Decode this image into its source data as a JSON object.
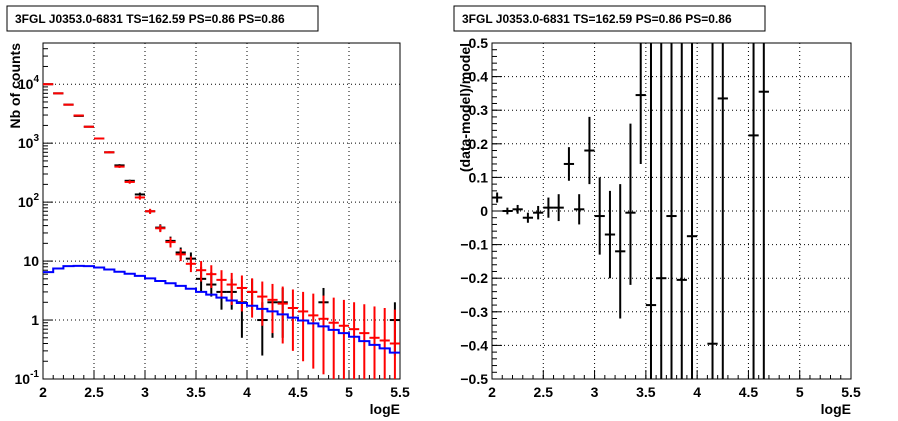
{
  "chart_data": [
    {
      "type": "scatter",
      "title": "3FGL J0353.0-6831 TS=162.59 PS=0.86 PS=0.86",
      "xlabel": "logE",
      "ylabel": "Nb of counts",
      "xlim": [
        2,
        5.5
      ],
      "ylim": [
        0.1,
        50000
      ],
      "yscale": "log",
      "grid": true,
      "x_ticks": [
        "2",
        "2.5",
        "3",
        "3.5",
        "4",
        "4.5",
        "5",
        "5.5"
      ],
      "y_ticks": [
        {
          "value": 0.1,
          "base": "10",
          "exp": "-1"
        },
        {
          "value": 1,
          "base": "1",
          "exp": ""
        },
        {
          "value": 10,
          "base": "10",
          "exp": ""
        },
        {
          "value": 100,
          "base": "10",
          "exp": "2"
        },
        {
          "value": 1000,
          "base": "10",
          "exp": "3"
        },
        {
          "value": 10000,
          "base": "10",
          "exp": "4"
        }
      ],
      "colors": {
        "data": "#000000",
        "model": "#ff0000",
        "background": "#0000ff"
      },
      "series": [
        {
          "role": "data",
          "x": [
            2.05,
            2.15,
            2.25,
            2.35,
            2.45,
            2.55,
            2.65,
            2.75,
            2.85,
            2.95,
            3.05,
            3.15,
            3.25,
            3.35,
            3.45,
            3.55,
            3.65,
            3.75,
            3.85,
            3.95,
            4.05,
            4.15,
            4.25,
            4.35,
            4.45,
            4.55,
            4.65,
            4.75,
            4.85,
            4.95,
            5.05,
            5.15,
            5.25,
            5.35,
            5.45
          ],
          "y": [
            10000,
            7000,
            4500,
            2900,
            1900,
            1200,
            700,
            420,
            230,
            135,
            70,
            37,
            22,
            14,
            11,
            5,
            4,
            3,
            3,
            2,
            3,
            1,
            2,
            2,
            null,
            null,
            null,
            2,
            null,
            null,
            null,
            null,
            null,
            null,
            1
          ],
          "y_low": [
            9900,
            6900,
            4400,
            2850,
            1850,
            1170,
            680,
            400,
            220,
            120,
            65,
            32,
            18,
            11,
            8,
            3,
            2.5,
            1.5,
            1.5,
            0.5,
            1.5,
            0.25,
            0.5,
            0.5,
            null,
            null,
            null,
            0.5,
            null,
            null,
            null,
            null,
            null,
            null,
            0.25
          ],
          "y_high": [
            10100,
            7100,
            4600,
            2950,
            1950,
            1230,
            720,
            440,
            240,
            145,
            75,
            42,
            26,
            17,
            14,
            8,
            6.5,
            5,
            5,
            3.5,
            5,
            2,
            3.5,
            3.5,
            null,
            null,
            null,
            3.5,
            null,
            null,
            null,
            null,
            null,
            null,
            2
          ]
        },
        {
          "role": "model",
          "x": [
            2.05,
            2.15,
            2.25,
            2.35,
            2.45,
            2.55,
            2.65,
            2.75,
            2.85,
            2.95,
            3.05,
            3.15,
            3.25,
            3.35,
            3.45,
            3.55,
            3.65,
            3.75,
            3.85,
            3.95,
            4.05,
            4.15,
            4.25,
            4.35,
            4.45,
            4.55,
            4.65,
            4.75,
            4.85,
            4.95,
            5.05,
            5.15,
            5.25,
            5.35,
            5.45
          ],
          "y": [
            10000,
            7000,
            4500,
            2950,
            1900,
            1200,
            700,
            400,
            220,
            120,
            70,
            36,
            21,
            13,
            9,
            7,
            6,
            4.8,
            4,
            3.5,
            3,
            2.5,
            2.2,
            1.9,
            1.6,
            1.4,
            1.2,
            1.05,
            0.9,
            0.8,
            0.7,
            0.6,
            0.5,
            0.45,
            0.4
          ],
          "y_low": [
            9800,
            6850,
            4400,
            2880,
            1850,
            1160,
            670,
            380,
            205,
            110,
            63,
            31,
            17,
            10,
            6.5,
            4.5,
            3.5,
            2.5,
            1.8,
            1.4,
            1.1,
            0.8,
            0.6,
            0.4,
            0.3,
            0.2,
            0.15,
            0.12,
            0.1,
            0.1,
            0.1,
            0.1,
            0.1,
            0.1,
            0.1
          ],
          "y_high": [
            10200,
            7150,
            4600,
            3020,
            1950,
            1240,
            730,
            420,
            235,
            130,
            77,
            41,
            25,
            16,
            12,
            10,
            8.5,
            7,
            6.3,
            5.7,
            5.1,
            4.5,
            4.1,
            3.7,
            3.3,
            3.0,
            2.8,
            2.6,
            2.4,
            2.2,
            2.0,
            1.85,
            1.7,
            1.6,
            1.5
          ]
        },
        {
          "role": "background",
          "type": "step",
          "bin_edges": [
            2.0,
            2.1,
            2.2,
            2.3,
            2.4,
            2.5,
            2.6,
            2.7,
            2.8,
            2.9,
            3.0,
            3.1,
            3.2,
            3.3,
            3.4,
            3.5,
            3.6,
            3.7,
            3.8,
            3.9,
            4.0,
            4.1,
            4.2,
            4.3,
            4.4,
            4.5,
            4.6,
            4.7,
            4.8,
            4.9,
            5.0,
            5.1,
            5.2,
            5.3,
            5.4,
            5.5
          ],
          "y": [
            6.5,
            7.5,
            8.2,
            8.3,
            8.2,
            7.8,
            7.2,
            6.6,
            6.1,
            5.6,
            5.1,
            4.6,
            4.2,
            3.8,
            3.4,
            3.0,
            2.7,
            2.4,
            2.15,
            1.95,
            1.75,
            1.55,
            1.4,
            1.25,
            1.1,
            0.98,
            0.88,
            0.78,
            0.68,
            0.6,
            0.52,
            0.44,
            0.38,
            0.33,
            0.28
          ]
        }
      ]
    },
    {
      "type": "scatter",
      "title": "3FGL J0353.0-6831 TS=162.59 PS=0.86 PS=0.86",
      "xlabel": "logE",
      "ylabel": "(data-model)/model",
      "xlim": [
        2,
        5.5
      ],
      "ylim": [
        -0.5,
        0.5
      ],
      "grid": true,
      "x_ticks": [
        "2",
        "2.5",
        "3",
        "3.5",
        "4",
        "4.5",
        "5",
        "5.5"
      ],
      "y_ticks": [
        "0.5",
        "0.4",
        "0.3",
        "0.2",
        "0.1",
        "0",
        "−0.1",
        "−0.2",
        "−0.3",
        "−0.4",
        "−0.5"
      ],
      "colors": {
        "data": "#000000"
      },
      "series": [
        {
          "role": "residual",
          "x": [
            2.05,
            2.15,
            2.25,
            2.35,
            2.45,
            2.55,
            2.65,
            2.75,
            2.85,
            2.95,
            3.05,
            3.15,
            3.25,
            3.35,
            3.45,
            3.55,
            3.65,
            3.75,
            3.85,
            3.95,
            4.15,
            4.25,
            4.55,
            4.65
          ],
          "y": [
            0.04,
            0.0,
            0.005,
            -0.02,
            -0.005,
            0.01,
            0.01,
            0.14,
            0.005,
            0.18,
            -0.015,
            -0.07,
            -0.12,
            -0.005,
            0.345,
            -0.28,
            -0.2,
            -0.015,
            -0.205,
            -0.075,
            -0.395,
            0.335,
            0.225,
            0.355
          ],
          "y_low": [
            0.025,
            -0.01,
            -0.008,
            -0.035,
            -0.025,
            -0.02,
            -0.03,
            0.09,
            -0.04,
            0.08,
            -0.13,
            -0.2,
            -0.32,
            -0.22,
            0.14,
            -0.5,
            -0.5,
            -0.5,
            -0.5,
            -0.5,
            -0.5,
            -0.5,
            -0.5,
            -0.5
          ],
          "y_high": [
            0.055,
            0.01,
            0.018,
            -0.005,
            0.015,
            0.04,
            0.05,
            0.19,
            0.05,
            0.28,
            0.1,
            0.06,
            0.08,
            0.26,
            0.5,
            0.5,
            0.5,
            0.5,
            0.5,
            0.5,
            0.5,
            0.5,
            0.5,
            0.5
          ]
        }
      ]
    }
  ]
}
